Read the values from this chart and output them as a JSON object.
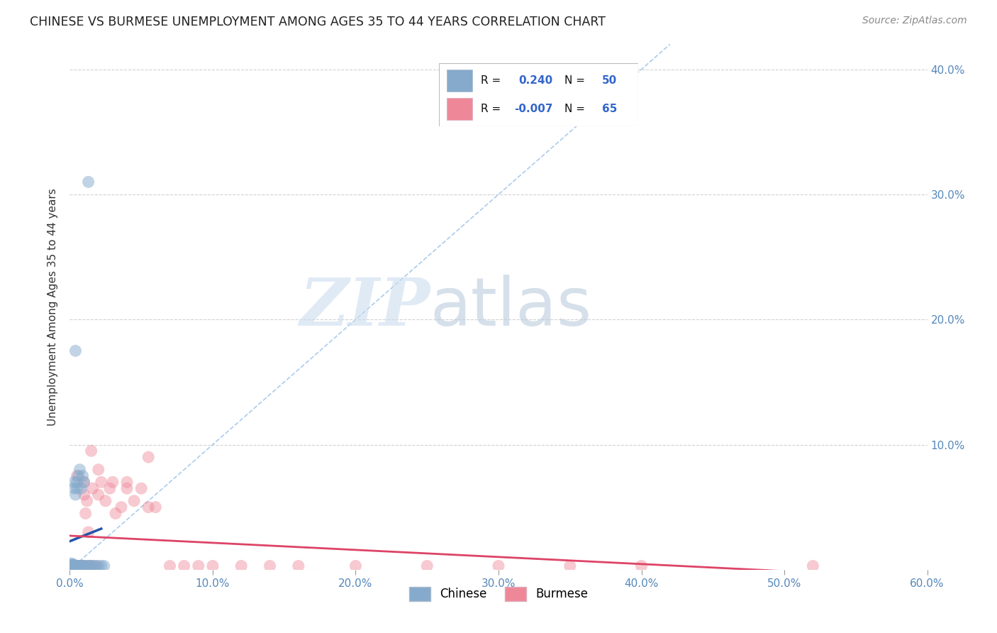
{
  "title": "CHINESE VS BURMESE UNEMPLOYMENT AMONG AGES 35 TO 44 YEARS CORRELATION CHART",
  "source": "Source: ZipAtlas.com",
  "ylabel": "Unemployment Among Ages 35 to 44 years",
  "xlim": [
    0.0,
    0.6
  ],
  "ylim": [
    0.0,
    0.42
  ],
  "xticks": [
    0.0,
    0.1,
    0.2,
    0.3,
    0.4,
    0.5,
    0.6
  ],
  "yticks": [
    0.0,
    0.1,
    0.2,
    0.3,
    0.4
  ],
  "xtick_labels": [
    "0.0%",
    "10.0%",
    "20.0%",
    "30.0%",
    "40.0%",
    "50.0%",
    "60.0%"
  ],
  "ytick_labels_right": [
    "",
    "10.0%",
    "20.0%",
    "30.0%",
    "40.0%"
  ],
  "chinese_color": "#85AACC",
  "burmese_color": "#EE8899",
  "chinese_R": 0.24,
  "chinese_N": 50,
  "burmese_R": -0.007,
  "burmese_N": 65,
  "diagonal_line_color": "#AACCEE",
  "chinese_trend_color": "#2255AA",
  "burmese_trend_color": "#DD4466",
  "chinese_x": [
    0.001,
    0.001,
    0.001,
    0.001,
    0.002,
    0.002,
    0.002,
    0.002,
    0.002,
    0.003,
    0.003,
    0.003,
    0.003,
    0.003,
    0.003,
    0.004,
    0.004,
    0.004,
    0.004,
    0.005,
    0.005,
    0.005,
    0.005,
    0.006,
    0.006,
    0.007,
    0.007,
    0.008,
    0.008,
    0.009,
    0.009,
    0.01,
    0.01,
    0.011,
    0.012,
    0.013,
    0.014,
    0.015,
    0.016,
    0.018,
    0.02,
    0.022,
    0.024,
    0.004,
    0.013,
    0.007,
    0.003,
    0.002,
    0.001,
    0.005
  ],
  "chinese_y": [
    0.003,
    0.004,
    0.005,
    0.002,
    0.003,
    0.004,
    0.002,
    0.003,
    0.002,
    0.003,
    0.003,
    0.004,
    0.003,
    0.065,
    0.07,
    0.003,
    0.003,
    0.06,
    0.003,
    0.003,
    0.065,
    0.07,
    0.003,
    0.003,
    0.075,
    0.003,
    0.08,
    0.003,
    0.065,
    0.003,
    0.075,
    0.003,
    0.07,
    0.003,
    0.003,
    0.003,
    0.003,
    0.003,
    0.003,
    0.003,
    0.003,
    0.003,
    0.003,
    0.175,
    0.31,
    0.003,
    0.003,
    0.003,
    0.003,
    0.003
  ],
  "burmese_x": [
    0.001,
    0.001,
    0.002,
    0.002,
    0.002,
    0.003,
    0.003,
    0.003,
    0.003,
    0.004,
    0.004,
    0.004,
    0.005,
    0.005,
    0.005,
    0.005,
    0.006,
    0.006,
    0.007,
    0.007,
    0.007,
    0.008,
    0.008,
    0.009,
    0.009,
    0.01,
    0.01,
    0.011,
    0.012,
    0.013,
    0.014,
    0.015,
    0.016,
    0.018,
    0.02,
    0.022,
    0.025,
    0.028,
    0.032,
    0.036,
    0.04,
    0.045,
    0.05,
    0.055,
    0.06,
    0.07,
    0.08,
    0.09,
    0.1,
    0.12,
    0.14,
    0.16,
    0.2,
    0.25,
    0.3,
    0.35,
    0.4,
    0.52,
    0.005,
    0.01,
    0.015,
    0.02,
    0.03,
    0.04,
    0.055
  ],
  "burmese_y": [
    0.003,
    0.003,
    0.003,
    0.003,
    0.003,
    0.003,
    0.003,
    0.003,
    0.003,
    0.003,
    0.003,
    0.003,
    0.003,
    0.003,
    0.003,
    0.003,
    0.003,
    0.003,
    0.003,
    0.003,
    0.003,
    0.003,
    0.003,
    0.003,
    0.003,
    0.06,
    0.003,
    0.045,
    0.055,
    0.03,
    0.003,
    0.003,
    0.065,
    0.003,
    0.06,
    0.07,
    0.055,
    0.065,
    0.045,
    0.05,
    0.07,
    0.055,
    0.065,
    0.09,
    0.05,
    0.003,
    0.003,
    0.003,
    0.003,
    0.003,
    0.003,
    0.003,
    0.003,
    0.003,
    0.003,
    0.003,
    0.003,
    0.003,
    0.075,
    0.07,
    0.095,
    0.08,
    0.07,
    0.065,
    0.05
  ]
}
